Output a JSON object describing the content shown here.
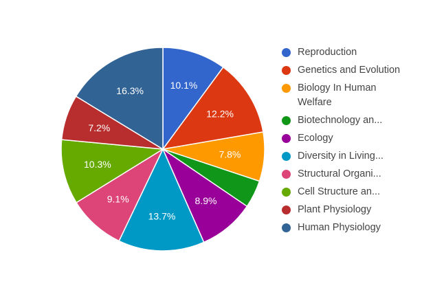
{
  "chart_data": {
    "type": "pie",
    "title": "",
    "start_angle_deg": 0,
    "direction": "clockwise",
    "legend_position": "right",
    "slices": [
      {
        "label": "Reproduction",
        "legend_text": "Reproduction",
        "value": 10.1,
        "display": "10.1%",
        "color": "#3366cc"
      },
      {
        "label": "Genetics and Evolution",
        "legend_text": "Genetics and Evolution",
        "value": 12.2,
        "display": "12.2%",
        "color": "#dc3912"
      },
      {
        "label": "Biology In Human Welfare",
        "legend_text": "Biology In Human Welfare",
        "value": 7.8,
        "display": "7.8%",
        "color": "#ff9900"
      },
      {
        "label": "Biotechnology and its Applications",
        "legend_text": "Biotechnology an...",
        "value": 4.4,
        "display": "",
        "color": "#109618"
      },
      {
        "label": "Ecology",
        "legend_text": "Ecology",
        "value": 8.9,
        "display": "8.9%",
        "color": "#990099"
      },
      {
        "label": "Diversity in Living World",
        "legend_text": "Diversity in Living...",
        "value": 13.7,
        "display": "13.7%",
        "color": "#0099c6"
      },
      {
        "label": "Structural Organisation",
        "legend_text": "Structural Organi...",
        "value": 9.1,
        "display": "9.1%",
        "color": "#dd4477"
      },
      {
        "label": "Cell Structure and Function",
        "legend_text": "Cell Structure an...",
        "value": 10.3,
        "display": "10.3%",
        "color": "#66aa00"
      },
      {
        "label": "Plant Physiology",
        "legend_text": "Plant Physiology",
        "value": 7.2,
        "display": "7.2%",
        "color": "#b82e2e"
      },
      {
        "label": "Human Physiology",
        "legend_text": "Human Physiology",
        "value": 16.3,
        "display": "16.3%",
        "color": "#316395"
      }
    ]
  },
  "legend": {
    "items": [
      {
        "label": "Reproduction",
        "color": "#3366cc"
      },
      {
        "label": "Genetics and Evolution",
        "color": "#dc3912"
      },
      {
        "label": "Biology In Human Welfare",
        "color": "#ff9900"
      },
      {
        "label": "Biotechnology an...",
        "color": "#109618"
      },
      {
        "label": "Ecology",
        "color": "#990099"
      },
      {
        "label": "Diversity in Living...",
        "color": "#0099c6"
      },
      {
        "label": "Structural Organi...",
        "color": "#dd4477"
      },
      {
        "label": "Cell Structure an...",
        "color": "#66aa00"
      },
      {
        "label": "Plant Physiology",
        "color": "#b82e2e"
      },
      {
        "label": "Human Physiology",
        "color": "#316395"
      }
    ]
  }
}
